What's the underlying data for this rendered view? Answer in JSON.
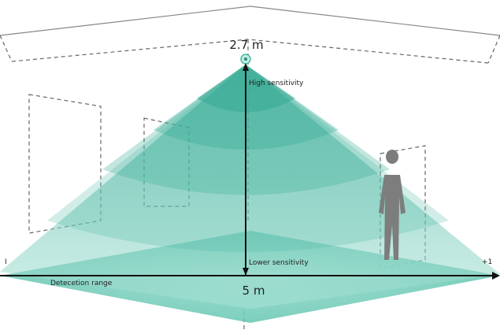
{
  "diagram": {
    "height_label": "2.7 m",
    "high_label": "High sensitivity",
    "low_label": "Lower sensitivity",
    "range_label": "Detecetion range",
    "width_label": "5 m",
    "left_edge_label": "I",
    "right_edge_label": "+1"
  }
}
